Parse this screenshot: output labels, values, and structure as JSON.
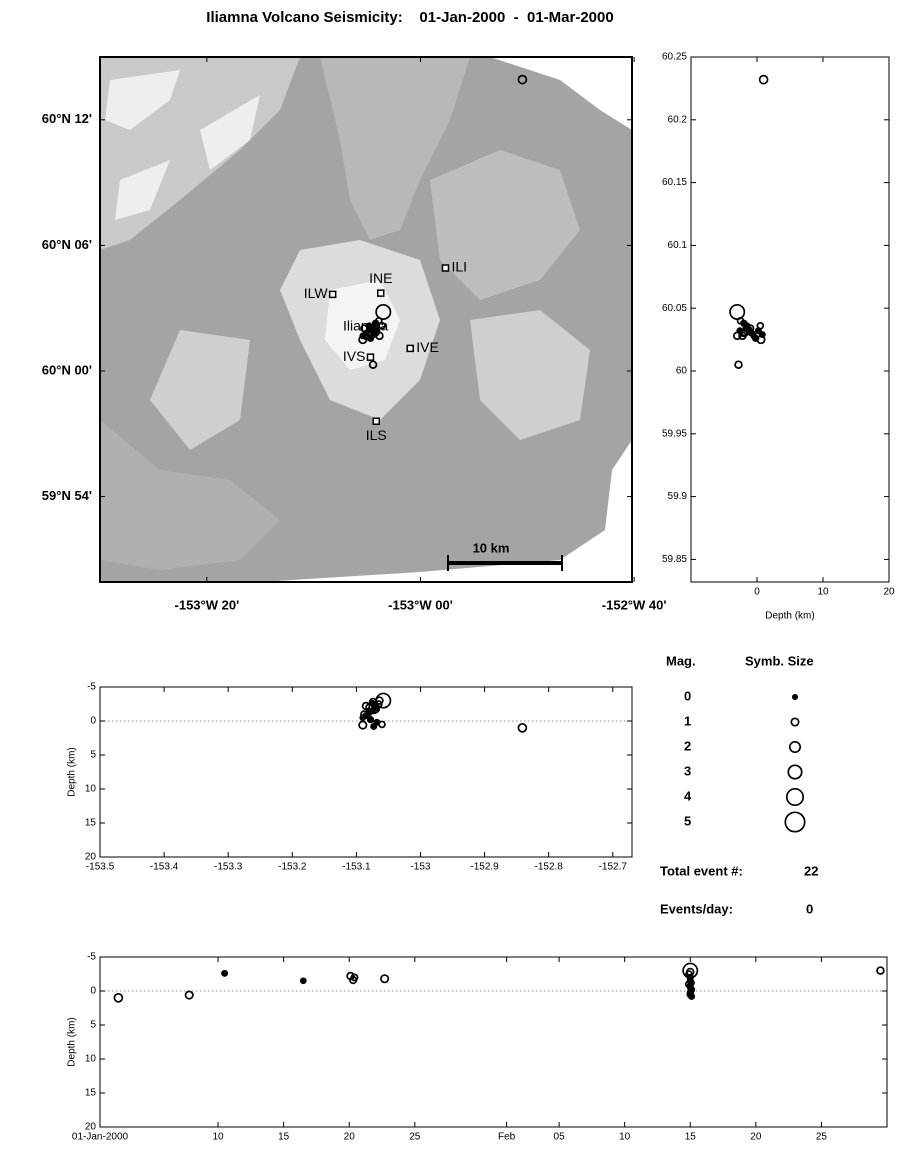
{
  "title": "Iliamna Volcano Seismicity:    01-Jan-2000  -  01-Mar-2000",
  "chart_data": [
    {
      "type": "scatter",
      "x": [
        -152.841,
        -153.09,
        -153.075,
        -153.08,
        -153.085,
        -153.072,
        -153.08,
        -153.07,
        -153.058,
        -153.065,
        -153.07,
        -153.075,
        -153.08,
        -153.085,
        -153.09,
        -153.078,
        -153.068,
        -153.06,
        -153.088,
        -153.073,
        -153.074,
        -153.064
      ],
      "y": [
        60.232,
        60.025,
        60.032,
        60.036,
        60.028,
        60.034,
        60.03,
        60.031,
        60.047,
        60.04,
        60.038,
        60.035,
        60.033,
        60.03,
        60.028,
        60.026,
        60.032,
        60.036,
        60.034,
        60.029,
        60.005,
        60.028
      ],
      "sizes": [
        1.2,
        1.0,
        0.3,
        0.2,
        0.8,
        0.7,
        0.6,
        1.0,
        3.3,
        0.5,
        0.4,
        0.3,
        0.2,
        0.3,
        0.2,
        0.4,
        0.3,
        0.5,
        0.6,
        0.3,
        0.8,
        0.8
      ],
      "xlim": [
        -153.5,
        -152.67
      ],
      "ylim": [
        59.832,
        60.25
      ],
      "xticks": [
        {
          "value": -153.3333,
          "label": "-153°W 20'"
        },
        {
          "value": -153,
          "label": "-153°W 00'"
        },
        {
          "value": -152.6667,
          "label": "-152°W 40'"
        }
      ],
      "yticks": [
        {
          "value": 60.2,
          "label": "60°N 12'"
        },
        {
          "value": 60.1,
          "label": "60°N 06'"
        },
        {
          "value": 60,
          "label": "60°N 00'"
        },
        {
          "value": 59.9,
          "label": "59°N 54'"
        }
      ],
      "stations": {
        "names": [
          "ILW",
          "INE",
          "ILI",
          "IVE",
          "IVS",
          "ILS"
        ],
        "x": [
          -153.137,
          -153.062,
          -152.961,
          -153.016,
          -153.078,
          -153.069
        ],
        "y": [
          60.061,
          60.062,
          60.082,
          60.018,
          60.011,
          59.96
        ]
      },
      "volcano_label": "Iliamna",
      "scale_bar_label": "10 km"
    },
    {
      "type": "scatter",
      "x": [
        1.0,
        0.6,
        -2.6,
        -1.5,
        -2.2,
        -1.6,
        -2.0,
        -1.8,
        -3.0,
        -2.5,
        -2.0,
        -1.5,
        -1.2,
        -0.8,
        -0.5,
        -0.2,
        0.2,
        0.5,
        -1.0,
        0.8,
        -2.8,
        -3.0
      ],
      "y": [
        60.232,
        60.025,
        60.032,
        60.036,
        60.028,
        60.034,
        60.03,
        60.031,
        60.047,
        60.04,
        60.038,
        60.035,
        60.033,
        60.03,
        60.028,
        60.026,
        60.032,
        60.036,
        60.034,
        60.029,
        60.005,
        60.028
      ],
      "sizes": [
        1.2,
        1.0,
        0.3,
        0.2,
        0.8,
        0.7,
        0.6,
        1.0,
        3.3,
        0.5,
        0.4,
        0.3,
        0.2,
        0.3,
        0.2,
        0.4,
        0.3,
        0.5,
        0.6,
        0.3,
        0.8,
        0.8
      ],
      "xlim": [
        -10,
        20
      ],
      "ylim": [
        59.832,
        60.25
      ],
      "xticks": [
        0,
        10,
        20
      ],
      "yticks": [
        59.85,
        59.9,
        59.95,
        60,
        60.05,
        60.1,
        60.15,
        60.2,
        60.25
      ],
      "xlabel": "Depth (km)"
    },
    {
      "type": "scatter",
      "x": [
        -152.841,
        -153.09,
        -153.075,
        -153.08,
        -153.085,
        -153.072,
        -153.08,
        -153.07,
        -153.058,
        -153.065,
        -153.07,
        -153.075,
        -153.08,
        -153.085,
        -153.09,
        -153.078,
        -153.068,
        -153.06,
        -153.088,
        -153.073,
        -153.074,
        -153.064
      ],
      "y": [
        1.0,
        0.6,
        -2.6,
        -1.5,
        -2.2,
        -1.6,
        -2.0,
        -1.8,
        -3.0,
        -2.5,
        -2.0,
        -1.5,
        -1.2,
        -0.8,
        -0.5,
        -0.2,
        0.2,
        0.5,
        -1.0,
        0.8,
        -2.8,
        -3.0
      ],
      "sizes": [
        1.2,
        1.0,
        0.3,
        0.2,
        0.8,
        0.7,
        0.6,
        1.0,
        3.3,
        0.5,
        0.4,
        0.3,
        0.2,
        0.3,
        0.2,
        0.4,
        0.3,
        0.5,
        0.6,
        0.3,
        0.8,
        0.8
      ],
      "xlim": [
        -153.5,
        -152.67
      ],
      "ylim": [
        -5,
        20
      ],
      "y_reversed": true,
      "zero_line": true,
      "xticks": [
        -153.5,
        -153.4,
        -153.3,
        -153.2,
        -153.1,
        -153,
        -152.9,
        -152.8,
        -152.7
      ],
      "yticks": [
        -5,
        0,
        5,
        10,
        15,
        20
      ],
      "ylabel": "Depth (km)"
    },
    {
      "type": "scatter",
      "x": [
        1.4,
        6.8,
        9.5,
        15.5,
        19.1,
        19.3,
        19.4,
        21.7,
        45.0,
        44.9,
        45.0,
        45.0,
        45.1,
        45.0,
        45.0,
        45.1,
        45.0,
        45.0,
        44.9,
        45.1,
        45.0,
        59.5
      ],
      "y": [
        1.0,
        0.6,
        -2.6,
        -1.5,
        -2.2,
        -1.6,
        -2.0,
        -1.8,
        -3.0,
        -2.5,
        -2.0,
        -1.5,
        -1.2,
        -0.8,
        -0.5,
        -0.2,
        0.2,
        0.5,
        -1.0,
        0.8,
        -2.8,
        -3.0
      ],
      "sizes": [
        1.2,
        1.0,
        0.3,
        0.2,
        0.8,
        0.7,
        0.6,
        1.0,
        3.3,
        0.5,
        0.4,
        0.3,
        0.2,
        0.3,
        0.2,
        0.4,
        0.3,
        0.5,
        0.6,
        0.3,
        0.8,
        0.8
      ],
      "xlim": [
        0,
        60
      ],
      "ylim": [
        -5,
        20
      ],
      "y_reversed": true,
      "zero_line": true,
      "xticks": [
        {
          "value": 0,
          "label": "01-Jan-2000"
        },
        {
          "value": 9,
          "label": "10"
        },
        {
          "value": 14,
          "label": "15"
        },
        {
          "value": 19,
          "label": "20"
        },
        {
          "value": 24,
          "label": "25"
        },
        {
          "value": 31,
          "label": "Feb"
        },
        {
          "value": 35,
          "label": "05"
        },
        {
          "value": 40,
          "label": "10"
        },
        {
          "value": 45,
          "label": "15"
        },
        {
          "value": 50,
          "label": "20"
        },
        {
          "value": 55,
          "label": "25"
        }
      ],
      "yticks": [
        -5,
        0,
        5,
        10,
        15,
        20
      ],
      "ylabel": "Depth (km)"
    }
  ],
  "legend": {
    "mag_title": "Mag.",
    "size_title": "Symb. Size",
    "mags": [
      0,
      1,
      2,
      3,
      4,
      5
    ]
  },
  "summary": {
    "total_label": "Total event #:",
    "total": 22,
    "rate_label": "Events/day:",
    "rate": 0
  }
}
